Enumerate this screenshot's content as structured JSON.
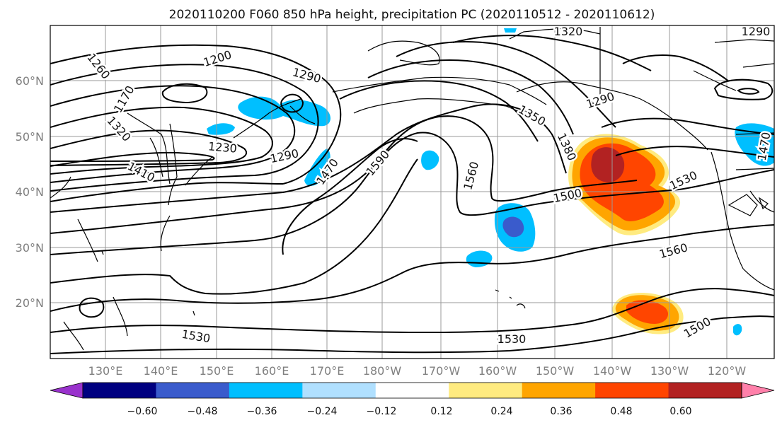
{
  "map": {
    "title": "2020110200 F060 850 hPa height, precipitation PC (2020110512 - 2020110612)",
    "lat_labels": [
      "60°N",
      "50°N",
      "40°N",
      "30°N",
      "20°N"
    ],
    "lon_labels": [
      "130°E",
      "140°E",
      "150°E",
      "160°E",
      "170°E",
      "180°W",
      "170°W",
      "160°W",
      "150°W",
      "140°W",
      "130°W",
      "120°W"
    ],
    "contour_labels": [
      {
        "text": "1260",
        "rot": 52
      },
      {
        "text": "1200",
        "rot": -18
      },
      {
        "text": "1320",
        "rot": 0
      },
      {
        "text": "1290",
        "rot": 0
      },
      {
        "text": "1170",
        "rot": -60
      },
      {
        "text": "1320",
        "rot": 48
      },
      {
        "text": "1230",
        "rot": 5
      },
      {
        "text": "1290",
        "rot": -12
      },
      {
        "text": "1410",
        "rot": 28
      },
      {
        "text": "1470",
        "rot": -55
      },
      {
        "text": "1590",
        "rot": -50
      },
      {
        "text": "1560",
        "rot": -75
      },
      {
        "text": "1350",
        "rot": 30
      },
      {
        "text": "1380",
        "rot": 65
      },
      {
        "text": "1290",
        "rot": -18
      },
      {
        "text": "1500",
        "rot": -12
      },
      {
        "text": "1530",
        "rot": -25
      },
      {
        "text": "1560",
        "rot": -15
      },
      {
        "text": "1530",
        "rot": 10
      },
      {
        "text": "1530",
        "rot": 0
      },
      {
        "text": "1500",
        "rot": -30
      },
      {
        "text": "1290",
        "rot": 15
      },
      {
        "text": "1470",
        "rot": -80
      }
    ]
  },
  "colorbar": {
    "ticks": [
      "−0.60",
      "−0.48",
      "−0.36",
      "−0.24",
      "−0.12",
      "0.12",
      "0.24",
      "0.36",
      "0.48",
      "0.60"
    ],
    "colors": [
      "#9932cc",
      "#000080",
      "#3a5bcc",
      "#00bfff",
      "#b0e0ff",
      "#ffffff",
      "#ffeb80",
      "#ffa500",
      "#ff4500",
      "#b22222",
      "#ff80aa"
    ]
  }
}
